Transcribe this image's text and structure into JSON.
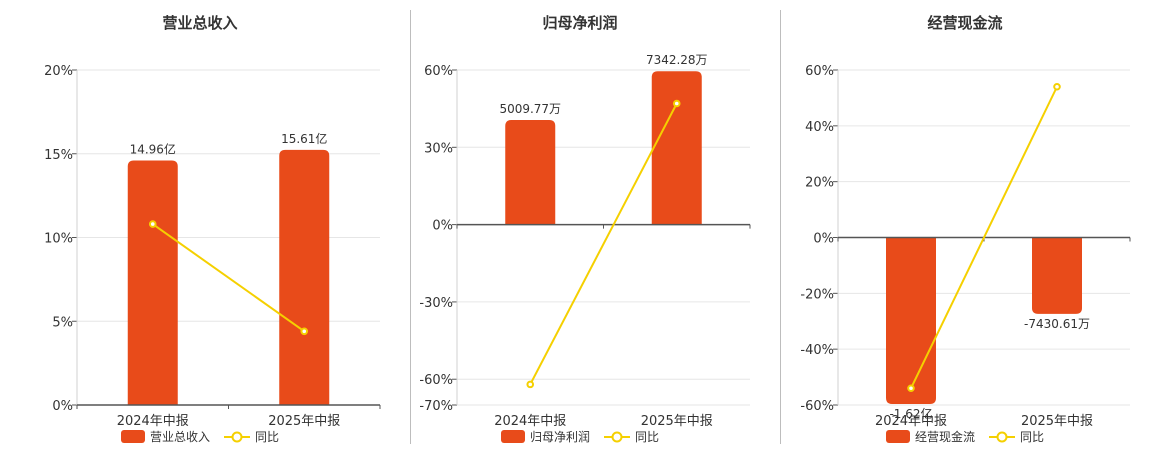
{
  "colors": {
    "bar": "#e84b1a",
    "line": "#f5d000",
    "grid": "#e6e6e6",
    "axis": "#555555",
    "text": "#333333"
  },
  "legend_line_label": "同比",
  "chart_data": [
    {
      "type": "bar",
      "title": "营业总收入",
      "legend_bar_label": "营业总收入",
      "categories": [
        "2024年中报",
        "2025年中报"
      ],
      "bar_values": [
        14.96,
        15.61
      ],
      "bar_value_unit": "亿",
      "bar_labels": [
        "14.96亿",
        "15.61亿"
      ],
      "yoy_values": [
        10.8,
        4.4
      ],
      "ylim": [
        0,
        20
      ],
      "yticks": [
        0,
        5,
        10,
        15,
        20
      ],
      "ytick_labels": [
        "0%",
        "5%",
        "10%",
        "15%",
        "20%"
      ],
      "bar_scale_max": 20.5
    },
    {
      "type": "bar",
      "title": "归母净利润",
      "legend_bar_label": "归母净利润",
      "categories": [
        "2024年中报",
        "2025年中报"
      ],
      "bar_values": [
        5009.77,
        7342.28
      ],
      "bar_value_unit": "万",
      "bar_labels": [
        "5009.77万",
        "7342.28万"
      ],
      "yoy_values": [
        -62,
        47
      ],
      "ylim": [
        -70,
        60
      ],
      "yticks": [
        -70,
        -60,
        -30,
        0,
        30,
        60
      ],
      "ytick_labels": [
        "-70%",
        "-60%",
        "-30%",
        "0%",
        "30%",
        "60%"
      ],
      "bar_scale_max": 7400
    },
    {
      "type": "bar",
      "title": "经营现金流",
      "legend_bar_label": "经营现金流",
      "categories": [
        "2024年中报",
        "2025年中报"
      ],
      "bar_values": [
        -16200,
        -7430.61
      ],
      "bar_value_unit": "万",
      "bar_labels": [
        "-1.62亿",
        "-7430.61万"
      ],
      "yoy_values": [
        -54,
        54
      ],
      "ylim": [
        -60,
        60
      ],
      "yticks": [
        -60,
        -40,
        -20,
        0,
        20,
        40,
        60
      ],
      "ytick_labels": [
        "-60%",
        "-40%",
        "-20%",
        "0%",
        "20%",
        "40%",
        "60%"
      ],
      "bar_scale_max": 16300
    }
  ]
}
